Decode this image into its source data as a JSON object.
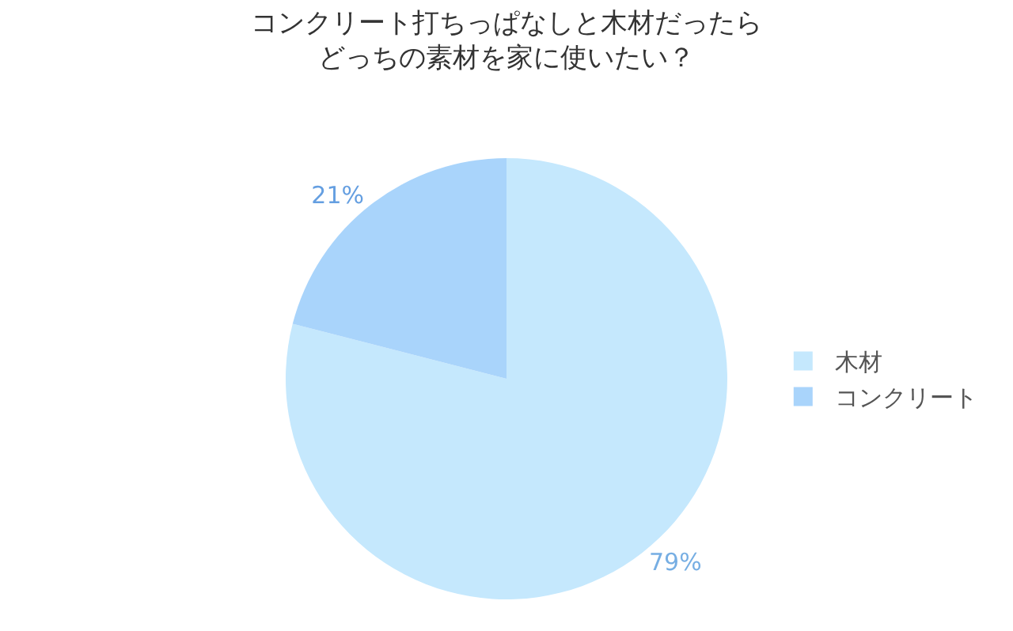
{
  "chart_data": {
    "type": "pie",
    "title": "コンクリート打ちっぱなしと木材だったら",
    "subtitle": "どっちの素材を家に使いたい？",
    "categories": [
      "木材",
      "コンクリート"
    ],
    "values": [
      79,
      21
    ],
    "colors": [
      "#c5e8fd",
      "#a9d4fb"
    ],
    "value_labels": [
      "79%",
      "21%"
    ],
    "legend": "right"
  }
}
